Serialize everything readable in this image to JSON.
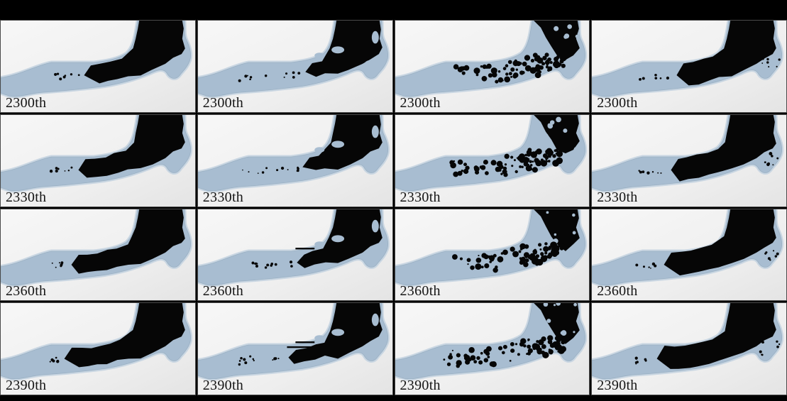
{
  "figure": {
    "type": "simulation-snapshot-grid",
    "colors": {
      "background": "#000000",
      "panel_bg_light": "#f6f6f6",
      "panel_bg_dark": "#e6e6e6",
      "channel": "#a8bdd1",
      "channel_halo": "#c9d6e2",
      "channel_edge": "#8fa6ba",
      "flow": "#060606",
      "label": "#151515",
      "panel_border": "#4a4a4a"
    },
    "rows": [
      {
        "label": "2300th"
      },
      {
        "label": "2330th"
      },
      {
        "label": "2360th"
      },
      {
        "label": "2390th"
      }
    ],
    "columns": [
      {
        "name": "column-1",
        "style": "solid",
        "fronts": [
          118,
          110,
          100,
          90
        ],
        "dots_start": 70,
        "dots": 7
      },
      {
        "name": "column-2",
        "style": "solid-islands",
        "fronts": [
          152,
          148,
          140,
          128
        ],
        "dots_start": 58,
        "dots": 12
      },
      {
        "name": "column-3",
        "style": "fragmented",
        "fronts": [
          78,
          75,
          72,
          66
        ],
        "dots_start": 60,
        "dots": 0
      },
      {
        "name": "column-4",
        "style": "solid-full",
        "fronts": [
          120,
          112,
          102,
          92
        ],
        "dots_start": 62,
        "dots": 7
      }
    ]
  }
}
